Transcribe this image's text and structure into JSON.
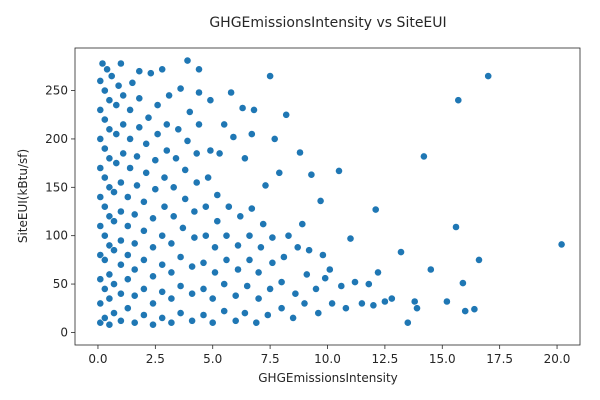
{
  "chart_data": {
    "type": "scatter",
    "title": "GHGEmissionsIntensity vs SiteEUI",
    "xlabel": "GHGEmissionsIntensity",
    "ylabel": "SiteEUI(kBtu/sf)",
    "xlim": [
      -1.0,
      21.0
    ],
    "ylim": [
      -13,
      294
    ],
    "xticks": [
      0.0,
      2.5,
      5.0,
      7.5,
      10.0,
      12.5,
      15.0,
      17.5,
      20.0
    ],
    "xtick_labels": [
      "0.0",
      "2.5",
      "5.0",
      "7.5",
      "10.0",
      "12.5",
      "15.0",
      "17.5",
      "20.0"
    ],
    "yticks": [
      0,
      50,
      100,
      150,
      200,
      250
    ],
    "ytick_labels": [
      "0",
      "50",
      "100",
      "150",
      "200",
      "250"
    ],
    "grid": false,
    "legend": "none",
    "color": "#1f77b4",
    "series": [
      {
        "points": [
          [
            0.1,
            10
          ],
          [
            0.1,
            30
          ],
          [
            0.1,
            55
          ],
          [
            0.1,
            80
          ],
          [
            0.1,
            110
          ],
          [
            0.1,
            140
          ],
          [
            0.1,
            170
          ],
          [
            0.1,
            200
          ],
          [
            0.1,
            230
          ],
          [
            0.1,
            260
          ],
          [
            0.2,
            278
          ],
          [
            0.3,
            15
          ],
          [
            0.3,
            45
          ],
          [
            0.3,
            75
          ],
          [
            0.3,
            100
          ],
          [
            0.3,
            130
          ],
          [
            0.3,
            160
          ],
          [
            0.3,
            190
          ],
          [
            0.3,
            220
          ],
          [
            0.3,
            250
          ],
          [
            0.4,
            272
          ],
          [
            0.5,
            8
          ],
          [
            0.5,
            35
          ],
          [
            0.5,
            60
          ],
          [
            0.5,
            90
          ],
          [
            0.5,
            120
          ],
          [
            0.5,
            150
          ],
          [
            0.5,
            180
          ],
          [
            0.5,
            210
          ],
          [
            0.5,
            240
          ],
          [
            0.6,
            265
          ],
          [
            0.7,
            20
          ],
          [
            0.7,
            50
          ],
          [
            0.7,
            85
          ],
          [
            0.7,
            115
          ],
          [
            0.7,
            145
          ],
          [
            0.8,
            175
          ],
          [
            0.8,
            205
          ],
          [
            0.8,
            235
          ],
          [
            0.9,
            255
          ],
          [
            1.0,
            12
          ],
          [
            1.0,
            40
          ],
          [
            1.0,
            70
          ],
          [
            1.0,
            95
          ],
          [
            1.0,
            125
          ],
          [
            1.0,
            155
          ],
          [
            1.1,
            185
          ],
          [
            1.1,
            215
          ],
          [
            1.1,
            245
          ],
          [
            1.0,
            278
          ],
          [
            1.3,
            25
          ],
          [
            1.3,
            55
          ],
          [
            1.3,
            80
          ],
          [
            1.3,
            110
          ],
          [
            1.3,
            140
          ],
          [
            1.4,
            170
          ],
          [
            1.4,
            200
          ],
          [
            1.4,
            230
          ],
          [
            1.5,
            258
          ],
          [
            1.6,
            10
          ],
          [
            1.6,
            38
          ],
          [
            1.6,
            65
          ],
          [
            1.6,
            92
          ],
          [
            1.6,
            122
          ],
          [
            1.7,
            152
          ],
          [
            1.7,
            182
          ],
          [
            1.8,
            212
          ],
          [
            1.8,
            242
          ],
          [
            1.8,
            270
          ],
          [
            2.0,
            18
          ],
          [
            2.0,
            45
          ],
          [
            2.0,
            75
          ],
          [
            2.0,
            105
          ],
          [
            2.0,
            135
          ],
          [
            2.1,
            165
          ],
          [
            2.1,
            195
          ],
          [
            2.2,
            222
          ],
          [
            2.3,
            268
          ],
          [
            2.4,
            8
          ],
          [
            2.4,
            30
          ],
          [
            2.4,
            58
          ],
          [
            2.4,
            88
          ],
          [
            2.4,
            118
          ],
          [
            2.5,
            148
          ],
          [
            2.5,
            178
          ],
          [
            2.6,
            205
          ],
          [
            2.6,
            235
          ],
          [
            2.8,
            272
          ],
          [
            2.8,
            15
          ],
          [
            2.8,
            42
          ],
          [
            2.8,
            70
          ],
          [
            2.8,
            100
          ],
          [
            2.9,
            130
          ],
          [
            2.9,
            160
          ],
          [
            3.0,
            188
          ],
          [
            3.0,
            215
          ],
          [
            3.1,
            245
          ],
          [
            3.2,
            10
          ],
          [
            3.2,
            35
          ],
          [
            3.2,
            62
          ],
          [
            3.2,
            92
          ],
          [
            3.3,
            120
          ],
          [
            3.3,
            150
          ],
          [
            3.4,
            180
          ],
          [
            3.5,
            210
          ],
          [
            3.6,
            252
          ],
          [
            3.6,
            20
          ],
          [
            3.6,
            48
          ],
          [
            3.6,
            78
          ],
          [
            3.7,
            108
          ],
          [
            3.8,
            138
          ],
          [
            3.8,
            168
          ],
          [
            3.9,
            198
          ],
          [
            3.9,
            281
          ],
          [
            4.0,
            228
          ],
          [
            4.1,
            12
          ],
          [
            4.1,
            40
          ],
          [
            4.1,
            68
          ],
          [
            4.2,
            98
          ],
          [
            4.2,
            125
          ],
          [
            4.3,
            155
          ],
          [
            4.3,
            185
          ],
          [
            4.4,
            215
          ],
          [
            4.4,
            248
          ],
          [
            4.4,
            272
          ],
          [
            4.6,
            18
          ],
          [
            4.6,
            45
          ],
          [
            4.6,
            72
          ],
          [
            4.7,
            100
          ],
          [
            4.7,
            130
          ],
          [
            4.8,
            160
          ],
          [
            4.9,
            188
          ],
          [
            4.9,
            240
          ],
          [
            5.0,
            10
          ],
          [
            5.0,
            35
          ],
          [
            5.1,
            62
          ],
          [
            5.1,
            88
          ],
          [
            5.2,
            115
          ],
          [
            5.2,
            142
          ],
          [
            5.3,
            185
          ],
          [
            5.5,
            215
          ],
          [
            5.5,
            22
          ],
          [
            5.5,
            50
          ],
          [
            5.6,
            75
          ],
          [
            5.6,
            100
          ],
          [
            5.7,
            130
          ],
          [
            5.8,
            248
          ],
          [
            5.9,
            202
          ],
          [
            6.0,
            12
          ],
          [
            6.0,
            38
          ],
          [
            6.1,
            65
          ],
          [
            6.1,
            90
          ],
          [
            6.2,
            120
          ],
          [
            6.3,
            232
          ],
          [
            6.4,
            180
          ],
          [
            6.4,
            20
          ],
          [
            6.5,
            48
          ],
          [
            6.6,
            75
          ],
          [
            6.6,
            100
          ],
          [
            6.7,
            128
          ],
          [
            6.7,
            205
          ],
          [
            6.8,
            230
          ],
          [
            6.9,
            10
          ],
          [
            7.0,
            35
          ],
          [
            7.0,
            62
          ],
          [
            7.1,
            88
          ],
          [
            7.2,
            112
          ],
          [
            7.3,
            152
          ],
          [
            7.5,
            265
          ],
          [
            7.4,
            18
          ],
          [
            7.5,
            45
          ],
          [
            7.6,
            72
          ],
          [
            7.6,
            98
          ],
          [
            7.7,
            200
          ],
          [
            7.9,
            165
          ],
          [
            8.0,
            25
          ],
          [
            8.0,
            52
          ],
          [
            8.1,
            78
          ],
          [
            8.2,
            225
          ],
          [
            8.3,
            100
          ],
          [
            8.5,
            15
          ],
          [
            8.6,
            40
          ],
          [
            8.7,
            88
          ],
          [
            8.8,
            186
          ],
          [
            8.9,
            112
          ],
          [
            9.0,
            30
          ],
          [
            9.1,
            60
          ],
          [
            9.2,
            85
          ],
          [
            9.3,
            163
          ],
          [
            9.5,
            45
          ],
          [
            9.6,
            20
          ],
          [
            9.7,
            136
          ],
          [
            9.8,
            80
          ],
          [
            9.9,
            56
          ],
          [
            10.1,
            65
          ],
          [
            10.2,
            30
          ],
          [
            10.5,
            167
          ],
          [
            10.6,
            48
          ],
          [
            10.8,
            25
          ],
          [
            11.0,
            97
          ],
          [
            11.2,
            52
          ],
          [
            11.5,
            30
          ],
          [
            11.8,
            50
          ],
          [
            12.0,
            28
          ],
          [
            12.1,
            127
          ],
          [
            12.2,
            62
          ],
          [
            12.5,
            32
          ],
          [
            12.8,
            35
          ],
          [
            13.2,
            83
          ],
          [
            13.5,
            10
          ],
          [
            13.8,
            32
          ],
          [
            13.9,
            25
          ],
          [
            14.2,
            182
          ],
          [
            14.5,
            65
          ],
          [
            15.2,
            32
          ],
          [
            15.6,
            109
          ],
          [
            15.7,
            240
          ],
          [
            15.9,
            51
          ],
          [
            16.0,
            22
          ],
          [
            16.4,
            24
          ],
          [
            16.6,
            75
          ],
          [
            17.0,
            265
          ],
          [
            20.2,
            91
          ]
        ]
      }
    ]
  }
}
